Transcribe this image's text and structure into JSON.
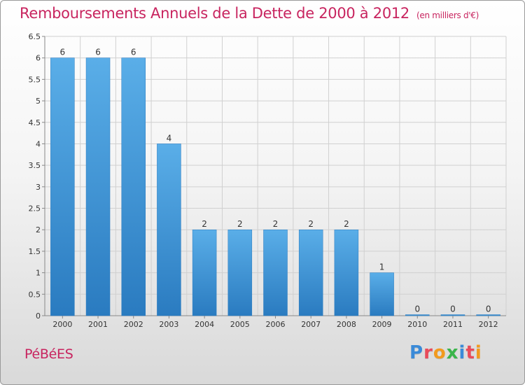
{
  "header": {
    "title": "Remboursements Annuels de la Dette de 2000 à 2012",
    "subtitle": "(en milliers d'€)"
  },
  "footer": {
    "commune": "PéBéES",
    "brand_letters": [
      {
        "ch": "P",
        "color": "#3a8ad8"
      },
      {
        "ch": "r",
        "color": "#e94b5a"
      },
      {
        "ch": "o",
        "color": "#f29a1e"
      },
      {
        "ch": "x",
        "color": "#3ab54a"
      },
      {
        "ch": "i",
        "color": "#3a8ad8"
      },
      {
        "ch": "t",
        "color": "#e94b5a"
      },
      {
        "ch": "i",
        "color": "#f29a1e"
      }
    ]
  },
  "colors": {
    "bar_light": "#5aaee8",
    "bar_dark": "#2a7bc0",
    "grid": "#d0d0d0",
    "axis": "#888888",
    "text": "#333333",
    "accent": "#c8245f"
  },
  "chart_data": {
    "type": "bar",
    "categories": [
      "2000",
      "2001",
      "2002",
      "2003",
      "2004",
      "2005",
      "2006",
      "2007",
      "2008",
      "2009",
      "2010",
      "2011",
      "2012"
    ],
    "values": [
      6,
      6,
      6,
      4,
      2,
      2,
      2,
      2,
      2,
      1,
      0,
      0,
      0
    ],
    "data_labels": [
      "6",
      "6",
      "6",
      "4",
      "2",
      "2",
      "2",
      "2",
      "2",
      "1",
      "0",
      "0",
      "0"
    ],
    "yticks": [
      "0",
      "0.5",
      "1",
      "1.5",
      "2",
      "2.5",
      "3",
      "3.5",
      "4",
      "4.5",
      "5",
      "5.5",
      "6",
      "6.5"
    ],
    "ylim": [
      0,
      6.5
    ],
    "grid": true,
    "title": "Remboursements Annuels de la Dette de 2000 à 2012",
    "xlabel": "",
    "ylabel": ""
  }
}
